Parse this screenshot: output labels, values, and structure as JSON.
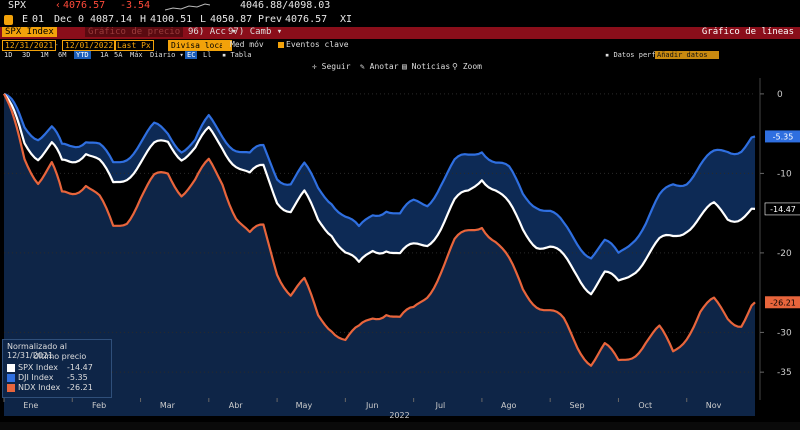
{
  "header": {
    "ticker": "SPX",
    "last_price": "4076.57",
    "net_change": "-3.54",
    "day_range": "4046.88/4098.03",
    "open_label": "01",
    "date": "Dec",
    "open_value": "0",
    "high_label": "H",
    "high_value": "4100.51",
    "low_label": "L",
    "low_value": "4050.87",
    "prev_label": "Prev",
    "prev_value": "4076.57",
    "exchange": "XI",
    "quote_prefix": "E",
    "open_prefix": "4087.14"
  },
  "titlebar": {
    "security": "SPX Index",
    "blurred_tab": "Gráfico de precio",
    "actions_label": "Acc",
    "actions_num": "96",
    "change_label": "Camb",
    "change_num": "97",
    "chart_type": "Gráfico de líneas"
  },
  "controls": {
    "start_date": "12/31/2021",
    "end_date": "12/01/2022",
    "field": "Last Px",
    "currency": "Divisa local",
    "med_mov": "Med móv",
    "key_events": "Eventos clave"
  },
  "periods": [
    "1D",
    "3D",
    "1M",
    "6M",
    "YTD",
    "1A",
    "5A",
    "Máx"
  ],
  "selected_period": "YTD",
  "frequency": "Diario",
  "toolbar_extra": {
    "ec": "EC",
    "li": "Ll",
    "table": "Tabla"
  },
  "data_source": {
    "label": "Datos perfil",
    "value": "Añadir datos"
  },
  "chart_toolbar": {
    "follow": "Seguir",
    "annotate": "Anotar",
    "news": "Noticias",
    "zoom": "Zoom"
  },
  "legend": {
    "title": "Normalizado al 12/31/2021",
    "subtitle": "Último precio",
    "entries": [
      {
        "name": "SPX Index",
        "value": "-14.47",
        "color": "#ffffff"
      },
      {
        "name": "DJI Index",
        "value": "-5.35",
        "color": "#2f6fe0"
      },
      {
        "name": "NDX Index",
        "value": "-26.21",
        "color": "#e8653c"
      }
    ]
  },
  "chart_data": {
    "type": "line",
    "title": "Normalizado al 12/31/2021",
    "xlabel": "2022",
    "ylabel": "",
    "x_tick_labels": [
      "Ene",
      "Feb",
      "Mar",
      "Abr",
      "May",
      "Jun",
      "Jul",
      "Ago",
      "Sep",
      "Oct",
      "Nov"
    ],
    "year_label": "2022",
    "y_ticks": [
      0,
      -10,
      -20,
      -30,
      -35
    ],
    "y_tick_labels": [
      "0",
      "-10",
      "-20",
      "-30",
      "-35"
    ],
    "ylim": [
      -38,
      2
    ],
    "x_month_axis": [
      0,
      11
    ],
    "series": [
      {
        "name": "DJI Index",
        "color": "#2f6fe0",
        "last_label": "-5.35",
        "fill": "#0d2a55",
        "points": [
          [
            0,
            0
          ],
          [
            0.15,
            -2
          ],
          [
            0.3,
            -4
          ],
          [
            0.5,
            -5
          ],
          [
            0.7,
            -4.5
          ],
          [
            0.85,
            -7
          ],
          [
            1.0,
            -6
          ],
          [
            1.2,
            -5.5
          ],
          [
            1.4,
            -7
          ],
          [
            1.6,
            -9
          ],
          [
            1.8,
            -7.5
          ],
          [
            2.0,
            -6
          ],
          [
            2.2,
            -4.5
          ],
          [
            2.4,
            -5
          ],
          [
            2.6,
            -6.5
          ],
          [
            2.8,
            -6
          ],
          [
            3.0,
            -3.5
          ],
          [
            3.2,
            -5
          ],
          [
            3.4,
            -6.5
          ],
          [
            3.6,
            -8
          ],
          [
            3.8,
            -7
          ],
          [
            4.0,
            -10
          ],
          [
            4.2,
            -11
          ],
          [
            4.4,
            -9.5
          ],
          [
            4.6,
            -12
          ],
          [
            4.8,
            -13
          ],
          [
            5.0,
            -15.5
          ],
          [
            5.2,
            -17.5
          ],
          [
            5.4,
            -15
          ],
          [
            5.6,
            -14
          ],
          [
            5.8,
            -15.5
          ],
          [
            6.0,
            -14
          ],
          [
            6.2,
            -13.5
          ],
          [
            6.4,
            -11
          ],
          [
            6.6,
            -9
          ],
          [
            6.8,
            -8
          ],
          [
            7.0,
            -6.5
          ],
          [
            7.2,
            -8.5
          ],
          [
            7.4,
            -10
          ],
          [
            7.6,
            -12.5
          ],
          [
            7.8,
            -13.5
          ],
          [
            8.0,
            -15
          ],
          [
            8.2,
            -17
          ],
          [
            8.4,
            -18.5
          ],
          [
            8.6,
            -20
          ],
          [
            8.8,
            -19
          ],
          [
            9.0,
            -20.5
          ],
          [
            9.2,
            -18
          ],
          [
            9.4,
            -16
          ],
          [
            9.6,
            -13.5
          ],
          [
            9.8,
            -11.5
          ],
          [
            10.0,
            -10.5
          ],
          [
            10.2,
            -9
          ],
          [
            10.4,
            -8
          ],
          [
            10.6,
            -7
          ],
          [
            10.8,
            -6.5
          ],
          [
            11.0,
            -5.35
          ]
        ]
      },
      {
        "name": "SPX Index",
        "color": "#ffffff",
        "last_label": "-14.47",
        "fill": "#000000",
        "points": [
          [
            0,
            0
          ],
          [
            0.15,
            -3
          ],
          [
            0.3,
            -6
          ],
          [
            0.5,
            -7.5
          ],
          [
            0.7,
            -6.5
          ],
          [
            0.85,
            -9
          ],
          [
            1.0,
            -8
          ],
          [
            1.2,
            -7
          ],
          [
            1.4,
            -9
          ],
          [
            1.6,
            -11.5
          ],
          [
            1.8,
            -10
          ],
          [
            2.0,
            -8.5
          ],
          [
            2.2,
            -7
          ],
          [
            2.4,
            -6
          ],
          [
            2.6,
            -7.5
          ],
          [
            2.8,
            -7
          ],
          [
            3.0,
            -5
          ],
          [
            3.2,
            -6.5
          ],
          [
            3.4,
            -8.5
          ],
          [
            3.6,
            -10.5
          ],
          [
            3.8,
            -9.5
          ],
          [
            4.0,
            -13
          ],
          [
            4.2,
            -14.5
          ],
          [
            4.4,
            -13
          ],
          [
            4.6,
            -16
          ],
          [
            4.8,
            -17
          ],
          [
            5.0,
            -20
          ],
          [
            5.2,
            -22
          ],
          [
            5.4,
            -19.5
          ],
          [
            5.6,
            -19
          ],
          [
            5.8,
            -20.5
          ],
          [
            6.0,
            -19.5
          ],
          [
            6.2,
            -18.5
          ],
          [
            6.4,
            -16.5
          ],
          [
            6.6,
            -14
          ],
          [
            6.8,
            -12.5
          ],
          [
            7.0,
            -10
          ],
          [
            7.2,
            -12
          ],
          [
            7.4,
            -14.5
          ],
          [
            7.6,
            -17
          ],
          [
            7.8,
            -18.5
          ],
          [
            8.0,
            -19.5
          ],
          [
            8.2,
            -21
          ],
          [
            8.4,
            -22.5
          ],
          [
            8.6,
            -24.5
          ],
          [
            8.8,
            -23
          ],
          [
            9.0,
            -24
          ],
          [
            9.2,
            -22
          ],
          [
            9.4,
            -20.5
          ],
          [
            9.6,
            -19
          ],
          [
            9.8,
            -18
          ],
          [
            10.0,
            -16.5
          ],
          [
            10.2,
            -15.5
          ],
          [
            10.4,
            -14.5
          ],
          [
            10.6,
            -15.5
          ],
          [
            10.8,
            -15
          ],
          [
            11.0,
            -14.47
          ]
        ]
      },
      {
        "name": "NDX Index",
        "color": "#e8653c",
        "last_label": "-26.21",
        "fill": "#0e2547",
        "points": [
          [
            0,
            0
          ],
          [
            0.15,
            -4
          ],
          [
            0.3,
            -8
          ],
          [
            0.5,
            -10.5
          ],
          [
            0.7,
            -9
          ],
          [
            0.85,
            -13
          ],
          [
            1.0,
            -12
          ],
          [
            1.2,
            -11
          ],
          [
            1.4,
            -13.5
          ],
          [
            1.6,
            -17
          ],
          [
            1.8,
            -15.5
          ],
          [
            2.0,
            -13
          ],
          [
            2.2,
            -11
          ],
          [
            2.4,
            -10
          ],
          [
            2.6,
            -12
          ],
          [
            2.8,
            -11
          ],
          [
            3.0,
            -9
          ],
          [
            3.2,
            -11
          ],
          [
            3.4,
            -15
          ],
          [
            3.6,
            -18
          ],
          [
            3.8,
            -17
          ],
          [
            4.0,
            -22
          ],
          [
            4.2,
            -25
          ],
          [
            4.4,
            -24
          ],
          [
            4.6,
            -28
          ],
          [
            4.8,
            -29
          ],
          [
            5.0,
            -31
          ],
          [
            5.2,
            -30
          ],
          [
            5.4,
            -28
          ],
          [
            5.6,
            -27
          ],
          [
            5.8,
            -28.5
          ],
          [
            6.0,
            -27.5
          ],
          [
            6.2,
            -25
          ],
          [
            6.4,
            -22
          ],
          [
            6.6,
            -19
          ],
          [
            6.8,
            -17.5
          ],
          [
            7.0,
            -16
          ],
          [
            7.2,
            -18.5
          ],
          [
            7.4,
            -21.5
          ],
          [
            7.6,
            -24.5
          ],
          [
            7.8,
            -26
          ],
          [
            8.0,
            -27.5
          ],
          [
            8.2,
            -29
          ],
          [
            8.4,
            -31.5
          ],
          [
            8.6,
            -33.5
          ],
          [
            8.8,
            -32
          ],
          [
            9.0,
            -34
          ],
          [
            9.2,
            -32.5
          ],
          [
            9.4,
            -31
          ],
          [
            9.6,
            -30
          ],
          [
            9.8,
            -32.5
          ],
          [
            10.0,
            -30
          ],
          [
            10.2,
            -27.5
          ],
          [
            10.4,
            -26.5
          ],
          [
            10.6,
            -28
          ],
          [
            10.8,
            -28.5
          ],
          [
            11.0,
            -26.21
          ]
        ]
      }
    ]
  }
}
